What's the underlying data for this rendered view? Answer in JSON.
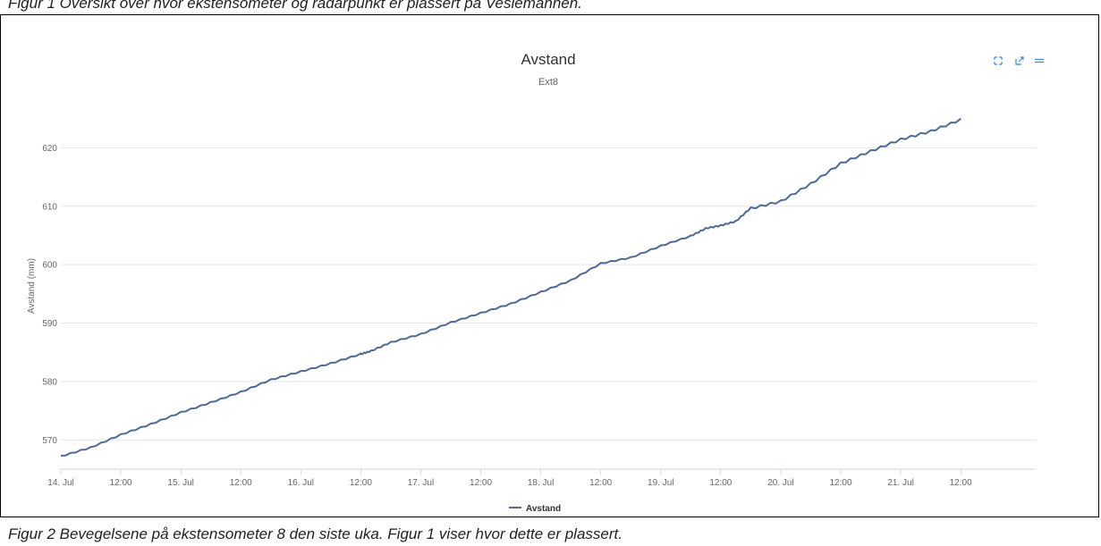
{
  "figure1_caption": "Figur 1 Oversikt over hvor ekstensometer og radarpunkt er plassert på Veslemannen.",
  "figure2_caption": "Figur 2 Bevegelsene på ekstensometer 8 den siste uka. Figur 1 viser hvor dette er plassert.",
  "toolbar": {
    "fullscreen_icon": "expand-icon",
    "popout_icon": "external-link-icon",
    "menu_icon": "hamburger-menu-icon"
  },
  "colors": {
    "series": "#4f6a92",
    "grid": "#e6e6e6",
    "axis_text": "#666666",
    "title_text": "#333333",
    "toolbar": "#3b87d9"
  },
  "chart_data": {
    "type": "line",
    "title": "Avstand",
    "subtitle": "Ext8",
    "xlabel": "",
    "ylabel": "Avstand (mm)",
    "ylim": [
      565,
      630
    ],
    "yticks": [
      570,
      580,
      590,
      600,
      610,
      620
    ],
    "xlim": [
      "2017-07-14T00:00",
      "2017-07-22T03:00"
    ],
    "xticks": [
      {
        "t": "2017-07-14T00:00",
        "label": "14. Jul"
      },
      {
        "t": "2017-07-14T12:00",
        "label": "12:00"
      },
      {
        "t": "2017-07-15T00:00",
        "label": "15. Jul"
      },
      {
        "t": "2017-07-15T12:00",
        "label": "12:00"
      },
      {
        "t": "2017-07-16T00:00",
        "label": "16. Jul"
      },
      {
        "t": "2017-07-16T12:00",
        "label": "12:00"
      },
      {
        "t": "2017-07-17T00:00",
        "label": "17. Jul"
      },
      {
        "t": "2017-07-17T12:00",
        "label": "12:00"
      },
      {
        "t": "2017-07-18T00:00",
        "label": "18. Jul"
      },
      {
        "t": "2017-07-18T12:00",
        "label": "12:00"
      },
      {
        "t": "2017-07-19T00:00",
        "label": "19. Jul"
      },
      {
        "t": "2017-07-19T12:00",
        "label": "12:00"
      },
      {
        "t": "2017-07-20T00:00",
        "label": "20. Jul"
      },
      {
        "t": "2017-07-20T12:00",
        "label": "12:00"
      },
      {
        "t": "2017-07-21T00:00",
        "label": "21. Jul"
      },
      {
        "t": "2017-07-21T12:00",
        "label": "12:00"
      }
    ],
    "grid": true,
    "legend": "bottom-center",
    "series": [
      {
        "name": "Avstand",
        "x": [
          "2017-07-14T00:00",
          "2017-07-14T06:00",
          "2017-07-14T12:00",
          "2017-07-14T18:00",
          "2017-07-15T00:00",
          "2017-07-15T06:00",
          "2017-07-15T12:00",
          "2017-07-15T18:00",
          "2017-07-16T00:00",
          "2017-07-16T06:00",
          "2017-07-16T12:00",
          "2017-07-16T14:00",
          "2017-07-16T18:00",
          "2017-07-17T00:00",
          "2017-07-17T06:00",
          "2017-07-17T12:00",
          "2017-07-17T18:00",
          "2017-07-18T00:00",
          "2017-07-18T06:00",
          "2017-07-18T12:00",
          "2017-07-18T18:00",
          "2017-07-19T00:00",
          "2017-07-19T06:00",
          "2017-07-19T09:00",
          "2017-07-19T12:00",
          "2017-07-19T15:00",
          "2017-07-19T18:00",
          "2017-07-20T00:00",
          "2017-07-20T06:00",
          "2017-07-20T12:00",
          "2017-07-20T18:00",
          "2017-07-21T00:00",
          "2017-07-21T06:00",
          "2017-07-21T12:00"
        ],
        "y": [
          567.3,
          568.8,
          571.0,
          572.8,
          574.8,
          576.5,
          578.3,
          580.4,
          581.8,
          583.2,
          584.8,
          585.3,
          586.8,
          588.2,
          590.2,
          591.8,
          593.4,
          595.4,
          597.4,
          600.3,
          601.3,
          603.3,
          605.0,
          606.3,
          606.8,
          607.5,
          609.8,
          611.0,
          614.0,
          617.5,
          619.6,
          621.6,
          623.0,
          625.0
        ]
      }
    ]
  }
}
